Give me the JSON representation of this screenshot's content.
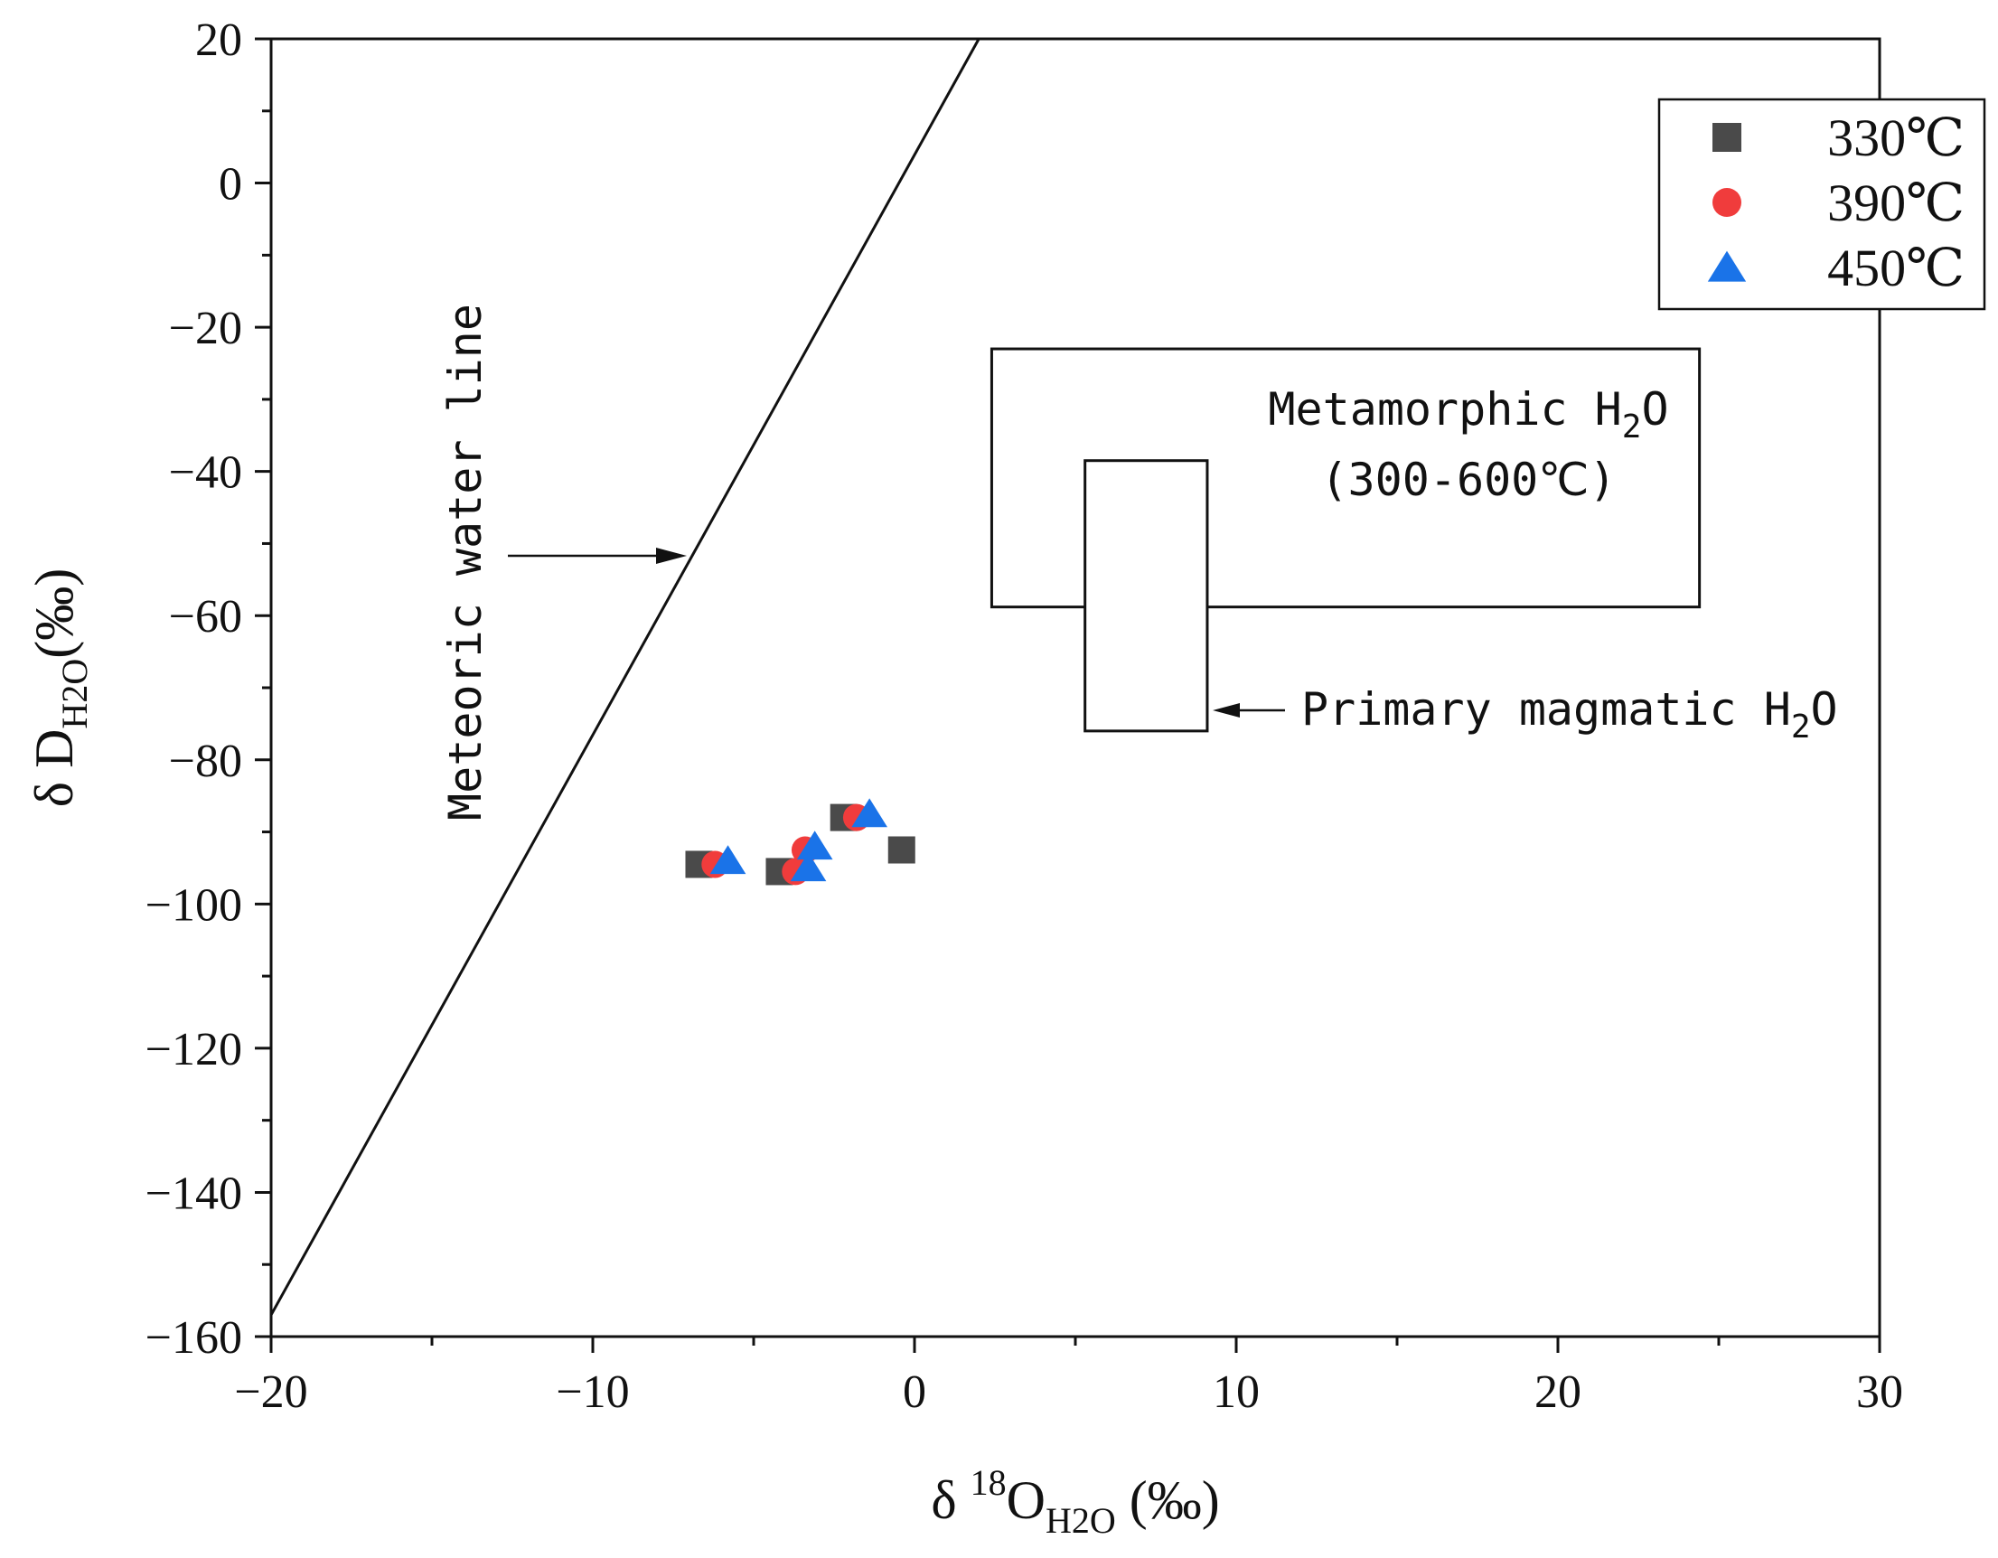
{
  "chart_data": {
    "type": "scatter",
    "title": "",
    "xlabel": {
      "prefix": "δ ",
      "sup": "18",
      "main": "O",
      "sub": "H2O",
      "unit": " (‰)"
    },
    "ylabel": {
      "prefix": "δ ",
      "main": "D",
      "sub": "H2O",
      "unit": "(‰)"
    },
    "xlim": [
      -20,
      30
    ],
    "ylim": [
      -160,
      20
    ],
    "x_ticks": [
      -20,
      -10,
      0,
      10,
      20,
      30
    ],
    "x_tick_labels": [
      "−20",
      "−10",
      "0",
      "10",
      "20",
      "30"
    ],
    "y_ticks": [
      20,
      0,
      -20,
      -40,
      -60,
      -80,
      -100,
      -120,
      -140,
      -160
    ],
    "y_tick_labels": [
      "20",
      "0",
      "−20",
      "−40",
      "−60",
      "−80",
      "−100",
      "−120",
      "−140",
      "−160"
    ],
    "grid": false,
    "legend_position": "top-right",
    "series": [
      {
        "name": "330℃",
        "marker": "square",
        "color": "#4a4a4a",
        "points": [
          [
            -6.7,
            -94.5
          ],
          [
            -4.2,
            -95.5
          ],
          [
            -2.2,
            -88
          ],
          [
            -0.4,
            -92.5
          ]
        ]
      },
      {
        "name": "390℃",
        "marker": "circle",
        "color": "#f03c3c",
        "points": [
          [
            -6.2,
            -94.5
          ],
          [
            -3.4,
            -92.5
          ],
          [
            -3.7,
            -95.5
          ],
          [
            -1.8,
            -88
          ]
        ]
      },
      {
        "name": "450℃",
        "marker": "triangle",
        "color": "#1a73e8",
        "points": [
          [
            -5.8,
            -94
          ],
          [
            -3.1,
            -92
          ],
          [
            -3.3,
            -95
          ],
          [
            -1.4,
            -87.5
          ]
        ]
      }
    ],
    "meteoric_water_line": {
      "label": "Meteoric water line",
      "from": [
        -20,
        -157
      ],
      "to": [
        2,
        20
      ]
    },
    "regions": [
      {
        "name": "Metamorphic H2O",
        "label_main": "Metamorphic H",
        "label_sub": "2",
        "label_tail": "O",
        "label_range": "(300-600℃)",
        "x": [
          2.4,
          24.4
        ],
        "y": [
          -58.8,
          -23
        ]
      },
      {
        "name": "Primary magmatic H2O",
        "label_main": "Primary magmatic H",
        "label_sub": "2",
        "label_tail": "O",
        "x": [
          5.3,
          9.1
        ],
        "y": [
          -76,
          -38.5
        ]
      }
    ]
  }
}
